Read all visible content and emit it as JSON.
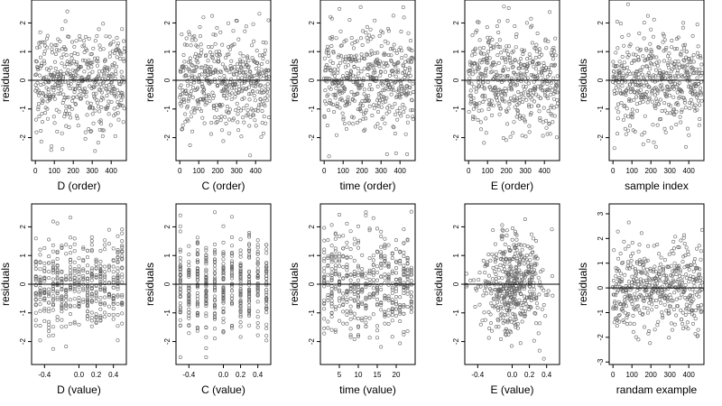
{
  "chart_data": [
    {
      "type": "scatter",
      "xlabel": "D (order)",
      "ylabel": "residuals",
      "xlim": [
        -20,
        480
      ],
      "ylim": [
        -2.8,
        2.8
      ],
      "xticks": [
        0,
        100,
        200,
        300,
        400
      ],
      "xtick_labels": [
        "0",
        "100",
        "200",
        "300",
        "400"
      ],
      "yticks": [
        -2,
        -1,
        0,
        1,
        2
      ],
      "ytick_labels": [
        "-2",
        "-1",
        "0",
        "1",
        "2"
      ],
      "hline": 0,
      "n_points": 480,
      "pattern": "index",
      "grid": false
    },
    {
      "type": "scatter",
      "xlabel": "C (order)",
      "ylabel": "residuals",
      "xlim": [
        -20,
        480
      ],
      "ylim": [
        -2.8,
        2.8
      ],
      "xticks": [
        0,
        100,
        200,
        300,
        400
      ],
      "xtick_labels": [
        "0",
        "100",
        "200",
        "300",
        "400"
      ],
      "yticks": [
        -2,
        -1,
        0,
        1,
        2
      ],
      "ytick_labels": [
        "-2",
        "-1",
        "0",
        "1",
        "2"
      ],
      "hline": 0,
      "n_points": 480,
      "pattern": "index",
      "grid": false
    },
    {
      "type": "scatter",
      "xlabel": "time (order)",
      "ylabel": "residuals",
      "xlim": [
        -20,
        480
      ],
      "ylim": [
        -2.8,
        2.8
      ],
      "xticks": [
        0,
        100,
        200,
        300,
        400
      ],
      "xtick_labels": [
        "0",
        "100",
        "200",
        "300",
        "400"
      ],
      "yticks": [
        -2,
        -1,
        0,
        1,
        2
      ],
      "ytick_labels": [
        "-2",
        "-1",
        "0",
        "1",
        "2"
      ],
      "hline": 0,
      "n_points": 480,
      "pattern": "index",
      "grid": false
    },
    {
      "type": "scatter",
      "xlabel": "E (order)",
      "ylabel": "residuals",
      "xlim": [
        -20,
        480
      ],
      "ylim": [
        -2.8,
        2.8
      ],
      "xticks": [
        0,
        100,
        200,
        300,
        400
      ],
      "xtick_labels": [
        "0",
        "100",
        "200",
        "300",
        "400"
      ],
      "yticks": [
        -2,
        -1,
        0,
        1,
        2
      ],
      "ytick_labels": [
        "-2",
        "-1",
        "0",
        "1",
        "2"
      ],
      "hline": 0,
      "n_points": 480,
      "pattern": "index",
      "grid": false
    },
    {
      "type": "scatter",
      "xlabel": "sample index",
      "ylabel": "residuals",
      "xlim": [
        -20,
        480
      ],
      "ylim": [
        -2.8,
        2.8
      ],
      "xticks": [
        0,
        100,
        200,
        300,
        400
      ],
      "xtick_labels": [
        "0",
        "100",
        "200",
        "300",
        "400"
      ],
      "yticks": [
        -2,
        -1,
        0,
        1,
        2
      ],
      "ytick_labels": [
        "-2",
        "-1",
        "0",
        "1",
        "2"
      ],
      "hline": 0,
      "n_points": 480,
      "pattern": "index",
      "grid": false
    },
    {
      "type": "scatter",
      "xlabel": "D (value)",
      "ylabel": "residuals",
      "xlim": [
        -0.55,
        0.55
      ],
      "ylim": [
        -2.8,
        2.8
      ],
      "xticks": [
        -0.4,
        0.0,
        0.2,
        0.4
      ],
      "xtick_labels": [
        "-0.4",
        "0.0",
        "0.2",
        "0.4"
      ],
      "yticks": [
        -2,
        -1,
        0,
        1,
        2
      ],
      "ytick_labels": [
        "-2",
        "-1",
        "0",
        "1",
        "2"
      ],
      "hline": 0,
      "n_points": 480,
      "pattern": "columns",
      "x_levels": [
        -0.5,
        -0.45,
        -0.4,
        -0.35,
        -0.3,
        -0.25,
        -0.2,
        -0.15,
        -0.1,
        -0.05,
        0.0,
        0.05,
        0.1,
        0.15,
        0.2,
        0.25,
        0.3,
        0.35,
        0.4,
        0.45,
        0.5
      ],
      "grid": false
    },
    {
      "type": "scatter",
      "xlabel": "C (value)",
      "ylabel": "residuals",
      "xlim": [
        -0.55,
        0.55
      ],
      "ylim": [
        -2.8,
        2.8
      ],
      "xticks": [
        -0.4,
        0.0,
        0.2,
        0.4
      ],
      "xtick_labels": [
        "-0.4",
        "0.0",
        "0.2",
        "0.4"
      ],
      "yticks": [
        -2,
        -1,
        0,
        1,
        2
      ],
      "ytick_labels": [
        "-2",
        "-1",
        "0",
        "1",
        "2"
      ],
      "hline": 0,
      "n_points": 480,
      "pattern": "columns",
      "x_levels": [
        -0.5,
        -0.4,
        -0.3,
        -0.2,
        -0.1,
        0.0,
        0.1,
        0.2,
        0.3,
        0.4,
        0.5
      ],
      "grid": false
    },
    {
      "type": "scatter",
      "xlabel": "time (value)",
      "ylabel": "residuals",
      "xlim": [
        0,
        25
      ],
      "ylim": [
        -2.8,
        2.8
      ],
      "xticks": [
        5,
        10,
        15,
        20
      ],
      "xtick_labels": [
        "5",
        "10",
        "15",
        "20"
      ],
      "yticks": [
        -2,
        -1,
        0,
        1,
        2
      ],
      "ytick_labels": [
        "-2",
        "-1",
        "0",
        "1",
        "2"
      ],
      "hline": 0,
      "n_points": 480,
      "pattern": "columns",
      "x_levels": [
        1,
        2,
        3,
        4,
        5,
        6,
        7,
        8,
        9,
        10,
        11,
        12,
        13,
        14,
        15,
        16,
        17,
        18,
        19,
        20,
        21,
        22,
        23,
        24
      ],
      "grid": false
    },
    {
      "type": "scatter",
      "xlabel": "E (value)",
      "ylabel": "residuals",
      "xlim": [
        -0.55,
        0.55
      ],
      "ylim": [
        -2.8,
        2.8
      ],
      "xticks": [
        -0.4,
        0.0,
        0.2,
        0.4
      ],
      "xtick_labels": [
        "-0.4",
        "0.0",
        "0.2",
        "0.4"
      ],
      "yticks": [
        -2,
        -1,
        0,
        1,
        2
      ],
      "ytick_labels": [
        "-2",
        "-1",
        "0",
        "1",
        "2"
      ],
      "hline": 0,
      "n_points": 480,
      "pattern": "cluster",
      "cluster_center": 0.0,
      "grid": false
    },
    {
      "type": "scatter",
      "xlabel": "randam example",
      "ylabel": "residuals",
      "xlim": [
        -20,
        480
      ],
      "ylim": [
        -3.1,
        3.4
      ],
      "xticks": [
        0,
        100,
        200,
        300,
        400
      ],
      "xtick_labels": [
        "0",
        "100",
        "200",
        "300",
        "400"
      ],
      "yticks": [
        -3,
        -2,
        -1,
        0,
        1,
        2,
        3
      ],
      "ytick_labels": [
        "-3",
        "-2",
        "-1",
        "0",
        "1",
        "2",
        "3"
      ],
      "hline": 0,
      "n_points": 480,
      "pattern": "index",
      "grid": false
    }
  ]
}
